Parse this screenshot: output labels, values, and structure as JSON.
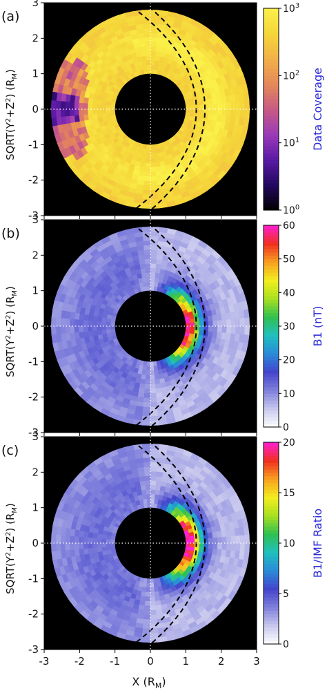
{
  "figure": {
    "xlabel": "X (R",
    "xlabel_sub": "M",
    "xlabel_close": ")",
    "ylabel_pre": "SQRT(Y",
    "ylabel_sup1": "2",
    "ylabel_mid": "+Z",
    "ylabel_sup2": "2",
    "ylabel_post": ") (R",
    "ylabel_sub": "M",
    "ylabel_close": ")",
    "colors": {
      "background": "#000000",
      "guide": "#ffffff",
      "boundary": "#000000",
      "cbar_label": "#2b2bd6"
    }
  },
  "chart_data": [
    {
      "type": "heatmap",
      "panel": "(a)",
      "quantity": "Data Coverage",
      "colorscale": "log",
      "cbar_range": [
        1,
        1000
      ],
      "cbar_ticks": [
        {
          "value": 1,
          "base": "10",
          "exp": "0"
        },
        {
          "value": 10,
          "base": "10",
          "exp": "1"
        },
        {
          "value": 100,
          "base": "10",
          "exp": "2"
        },
        {
          "value": 1000,
          "base": "10",
          "exp": "3"
        }
      ],
      "colormap": [
        "#000000",
        "#22085e",
        "#5a1aa6",
        "#9b3ab8",
        "#c85a85",
        "#e5885a",
        "#f2b048",
        "#f5d63a",
        "#fbf04a"
      ],
      "xlim": [
        -3,
        3
      ],
      "ylim": [
        -3,
        3
      ],
      "xticks": [
        -3,
        -2,
        -1,
        0,
        1,
        2,
        3
      ],
      "yticks": [
        -3,
        -2,
        -1,
        0,
        1,
        2,
        3
      ],
      "inner_radius": 1,
      "outer_radius": 2.8,
      "typical_value_range": [
        300,
        800
      ],
      "features": "orbital coverage highest (~1000) in ring near r=1.3-2.2 on dayside; low coverage (~10) patches near X=-2.5"
    },
    {
      "type": "heatmap",
      "panel": "(b)",
      "quantity": "B1 (nT)",
      "colorscale": "linear",
      "cbar_range": [
        0,
        60
      ],
      "cbar_ticks": [
        {
          "value": 0,
          "label": "0"
        },
        {
          "value": 10,
          "label": "10"
        },
        {
          "value": 20,
          "label": "20"
        },
        {
          "value": 30,
          "label": "30"
        },
        {
          "value": 40,
          "label": "40"
        },
        {
          "value": 50,
          "label": "50"
        },
        {
          "value": 60,
          "label": "60"
        }
      ],
      "colormap": [
        "#ffffff",
        "#c8c8ee",
        "#8080dc",
        "#4444cc",
        "#2a8ad8",
        "#20c0c0",
        "#30c050",
        "#a8e020",
        "#f2ee20",
        "#f8a020",
        "#f03020",
        "#ff20d0"
      ],
      "xlim": [
        -3,
        3
      ],
      "ylim": [
        -3,
        3
      ],
      "xticks": [
        -3,
        -2,
        -1,
        0,
        1,
        2,
        3
      ],
      "yticks": [
        -3,
        -2,
        -1,
        0,
        1,
        2,
        3
      ],
      "inner_radius": 1,
      "outer_radius": 2.8,
      "dayside_peak": 60,
      "nightside_typical": 8,
      "features": "strong compressed field (40-60 nT) in crescent hugging planet on dayside X≈0.8-1.2"
    },
    {
      "type": "heatmap",
      "panel": "(c)",
      "quantity": "B1/IMF Ratio",
      "colorscale": "linear",
      "cbar_range": [
        0,
        20
      ],
      "cbar_ticks": [
        {
          "value": 0,
          "label": "0"
        },
        {
          "value": 5,
          "label": "5"
        },
        {
          "value": 10,
          "label": "10"
        },
        {
          "value": 15,
          "label": "15"
        },
        {
          "value": 20,
          "label": "20"
        }
      ],
      "colormap": [
        "#ffffff",
        "#c8c8ee",
        "#8080dc",
        "#4444cc",
        "#2a8ad8",
        "#20c0c0",
        "#30c050",
        "#a8e020",
        "#f2ee20",
        "#f8a020",
        "#f03020",
        "#ff20d0"
      ],
      "xlim": [
        -3,
        3
      ],
      "ylim": [
        -3,
        3
      ],
      "xticks": [
        -3,
        -2,
        -1,
        0,
        1,
        2,
        3
      ],
      "yticks": [
        -3,
        -2,
        -1,
        0,
        1,
        2,
        3
      ],
      "inner_radius": 1,
      "outer_radius": 2.8,
      "dayside_peak": 20,
      "nightside_typical": 4,
      "features": "ratio up to ~20 in dayside crescent; ~3-6 on nightside"
    }
  ]
}
